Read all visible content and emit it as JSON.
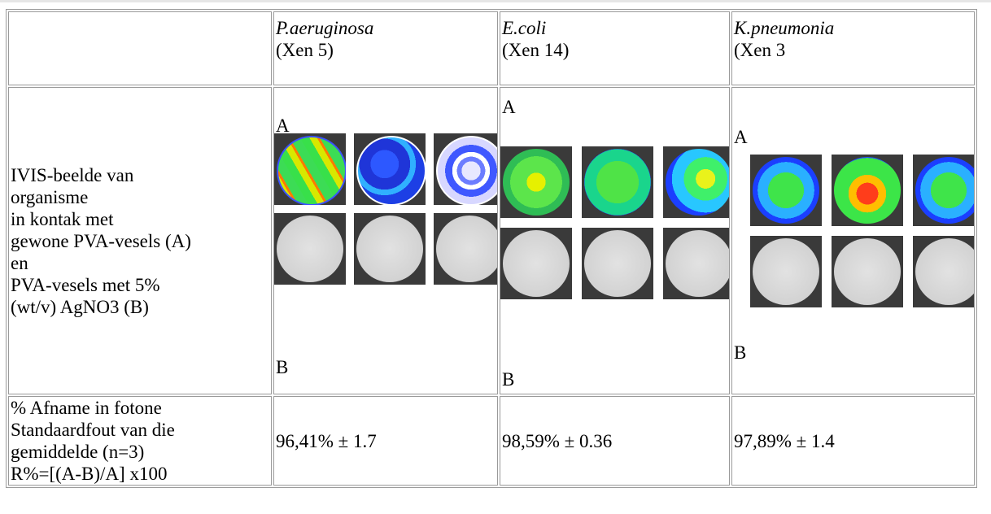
{
  "table": {
    "headers": [
      {
        "species": "",
        "strain": ""
      },
      {
        "species": "P.aeruginosa",
        "strain": "(Xen 5)"
      },
      {
        "species": "E.coli",
        "strain": "(Xen 14)"
      },
      {
        "species": "K.pneumonia",
        "strain": "(Xen 3"
      }
    ],
    "row_images": {
      "label_lines": [
        "IVIS-beelde van",
        "organisme",
        "in kontak met",
        "gewone PVA-vesels (A)",
        "en",
        "PVA-vesels met 5%",
        "(wt/v) AgNO3 (B)"
      ],
      "label_a": "A",
      "label_b": "B"
    },
    "row_values": {
      "label_lines": [
        "% Afname in fotone",
        "Standaardfout van die",
        "gemiddelde (n=3)",
        "R%=[(A-B)/A] x100"
      ],
      "values": [
        "96,41% ± 1.7",
        "98,59% ± 0.36",
        "97,89% ± 1.4"
      ]
    }
  }
}
